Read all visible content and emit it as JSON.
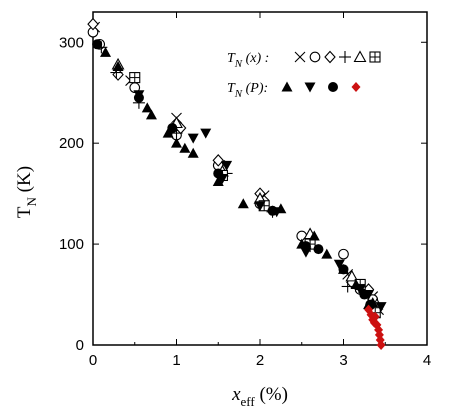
{
  "chart_data": {
    "type": "scatter",
    "xlabel_main": "x",
    "xlabel_sub": "eff",
    "xlabel_unit": " (%)",
    "ylabel_main": "T",
    "ylabel_sub": "N",
    "ylabel_unit": " (K)",
    "xlim": [
      0,
      4
    ],
    "ylim": [
      0,
      330
    ],
    "x_ticks": [
      0,
      1,
      2,
      3,
      4
    ],
    "y_ticks": [
      0,
      100,
      200,
      300
    ],
    "grid": false,
    "legend_placement": "top-right",
    "legend": [
      {
        "label": "T",
        "sub": "N",
        "arg": " (x) :",
        "symbols": [
          "cross",
          "circle-open",
          "diamond-open",
          "plus",
          "triangle-open",
          "square-plus"
        ]
      },
      {
        "label": "T",
        "sub": "N",
        "arg": " (P):",
        "symbols": [
          "triangle-filled",
          "triangle-down-filled",
          "circle-filled",
          "diamond-red"
        ]
      }
    ],
    "colors": {
      "black": "#000000",
      "red": "#cc1111"
    },
    "series": [
      {
        "marker": "cross",
        "points": [
          [
            0.02,
            315
          ],
          [
            0.45,
            262
          ],
          [
            1.0,
            225
          ],
          [
            1.52,
            178
          ],
          [
            2.05,
            148
          ],
          [
            2.55,
            103
          ],
          [
            3.05,
            70
          ],
          [
            3.2,
            58
          ],
          [
            3.35,
            48
          ],
          [
            3.42,
            35
          ]
        ]
      },
      {
        "marker": "circle-open",
        "points": [
          [
            0.0,
            310
          ],
          [
            0.08,
            298
          ],
          [
            0.5,
            255
          ],
          [
            1.0,
            208
          ],
          [
            1.5,
            178
          ],
          [
            2.0,
            140
          ],
          [
            2.5,
            108
          ],
          [
            3.0,
            90
          ],
          [
            3.2,
            55
          ],
          [
            3.35,
            45
          ]
        ]
      },
      {
        "marker": "diamond-open",
        "points": [
          [
            0.0,
            318
          ],
          [
            0.3,
            268
          ],
          [
            1.05,
            215
          ],
          [
            1.5,
            183
          ],
          [
            2.0,
            150
          ],
          [
            2.55,
            102
          ],
          [
            3.1,
            62
          ],
          [
            3.3,
            55
          ]
        ]
      },
      {
        "marker": "plus",
        "points": [
          [
            0.1,
            295
          ],
          [
            0.28,
            270
          ],
          [
            0.55,
            240
          ],
          [
            1.0,
            210
          ],
          [
            1.6,
            170
          ],
          [
            2.15,
            132
          ],
          [
            2.6,
            98
          ],
          [
            3.05,
            58
          ],
          [
            3.25,
            52
          ]
        ]
      },
      {
        "marker": "triangle-open",
        "points": [
          [
            0.3,
            278
          ],
          [
            1.0,
            220
          ],
          [
            1.55,
            172
          ],
          [
            2.0,
            145
          ],
          [
            2.6,
            110
          ],
          [
            3.1,
            68
          ],
          [
            3.4,
            40
          ]
        ]
      },
      {
        "marker": "square-plus",
        "points": [
          [
            0.5,
            265
          ],
          [
            1.55,
            168
          ],
          [
            2.05,
            138
          ],
          [
            2.6,
            100
          ],
          [
            3.2,
            60
          ],
          [
            3.38,
            32
          ]
        ]
      },
      {
        "marker": "triangle-filled",
        "points": [
          [
            0.15,
            290
          ],
          [
            0.3,
            276
          ],
          [
            0.65,
            235
          ],
          [
            0.7,
            228
          ],
          [
            0.9,
            210
          ],
          [
            1.0,
            200
          ],
          [
            1.1,
            195
          ],
          [
            1.2,
            190
          ],
          [
            1.5,
            162
          ],
          [
            1.8,
            140
          ],
          [
            2.25,
            135
          ],
          [
            2.5,
            100
          ],
          [
            2.65,
            108
          ],
          [
            2.8,
            90
          ],
          [
            3.0,
            75
          ],
          [
            3.15,
            60
          ],
          [
            3.3,
            40
          ],
          [
            3.35,
            42
          ]
        ]
      },
      {
        "marker": "triangle-down-filled",
        "points": [
          [
            0.55,
            248
          ],
          [
            1.2,
            205
          ],
          [
            1.35,
            210
          ],
          [
            1.55,
            165
          ],
          [
            1.6,
            178
          ],
          [
            2.0,
            138
          ],
          [
            2.2,
            132
          ],
          [
            2.55,
            92
          ],
          [
            2.95,
            80
          ],
          [
            3.2,
            55
          ],
          [
            3.3,
            50
          ],
          [
            3.45,
            38
          ]
        ]
      },
      {
        "marker": "circle-filled",
        "points": [
          [
            0.05,
            298
          ],
          [
            0.55,
            245
          ],
          [
            0.95,
            215
          ],
          [
            1.5,
            170
          ],
          [
            2.15,
            133
          ],
          [
            2.55,
            98
          ],
          [
            2.7,
            95
          ],
          [
            3.0,
            75
          ],
          [
            3.25,
            50
          ],
          [
            3.32,
            40
          ]
        ]
      },
      {
        "marker": "diamond-red",
        "points": [
          [
            3.3,
            35
          ],
          [
            3.33,
            30
          ],
          [
            3.35,
            25
          ],
          [
            3.37,
            22
          ],
          [
            3.4,
            20
          ],
          [
            3.42,
            15
          ],
          [
            3.43,
            10
          ],
          [
            3.44,
            5
          ],
          [
            3.45,
            0
          ],
          [
            3.38,
            28
          ]
        ]
      }
    ]
  }
}
